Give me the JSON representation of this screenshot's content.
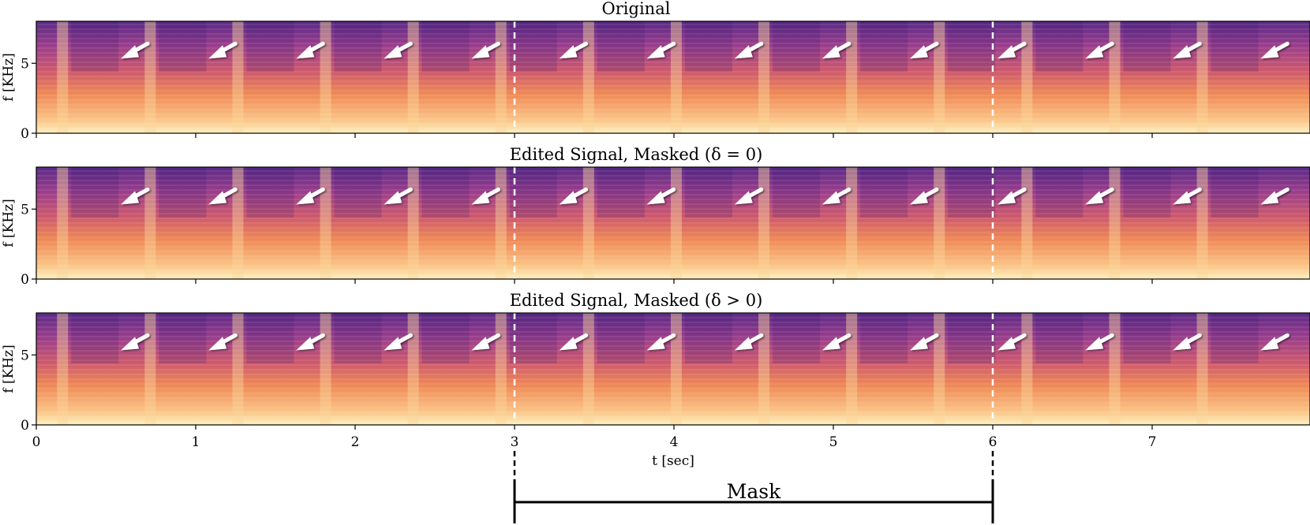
{
  "chart_data": {
    "type": "heatmap",
    "panels": [
      {
        "title": "Original",
        "ylabel": "f [KHz]"
      },
      {
        "title": "Edited Signal, Masked (δ = 0)",
        "ylabel": "f [KHz]"
      },
      {
        "title": "Edited Signal, Masked (δ > 0)",
        "ylabel": "f [KHz]"
      }
    ],
    "xlabel": "t [sec]",
    "xlim": [
      0,
      8.0
    ],
    "ylim": [
      0,
      8
    ],
    "x_ticks": [
      0,
      1,
      2,
      3,
      4,
      5,
      6,
      7
    ],
    "y_ticks": [
      0,
      5
    ],
    "mask_boundaries_sec": [
      3,
      6
    ],
    "mask_label": "Mask",
    "onset_arrows_sec": [
      0.55,
      1.1,
      1.65,
      2.2,
      2.75,
      3.3,
      3.85,
      4.4,
      4.95,
      5.5,
      6.05,
      6.6,
      7.15,
      7.7
    ],
    "arrow_freq_khz": 5.5,
    "colormap": [
      "#1f1050",
      "#5a2a86",
      "#9b3e8c",
      "#cf5a6c",
      "#ef8a56",
      "#fbc486",
      "#fcf1c0"
    ]
  }
}
